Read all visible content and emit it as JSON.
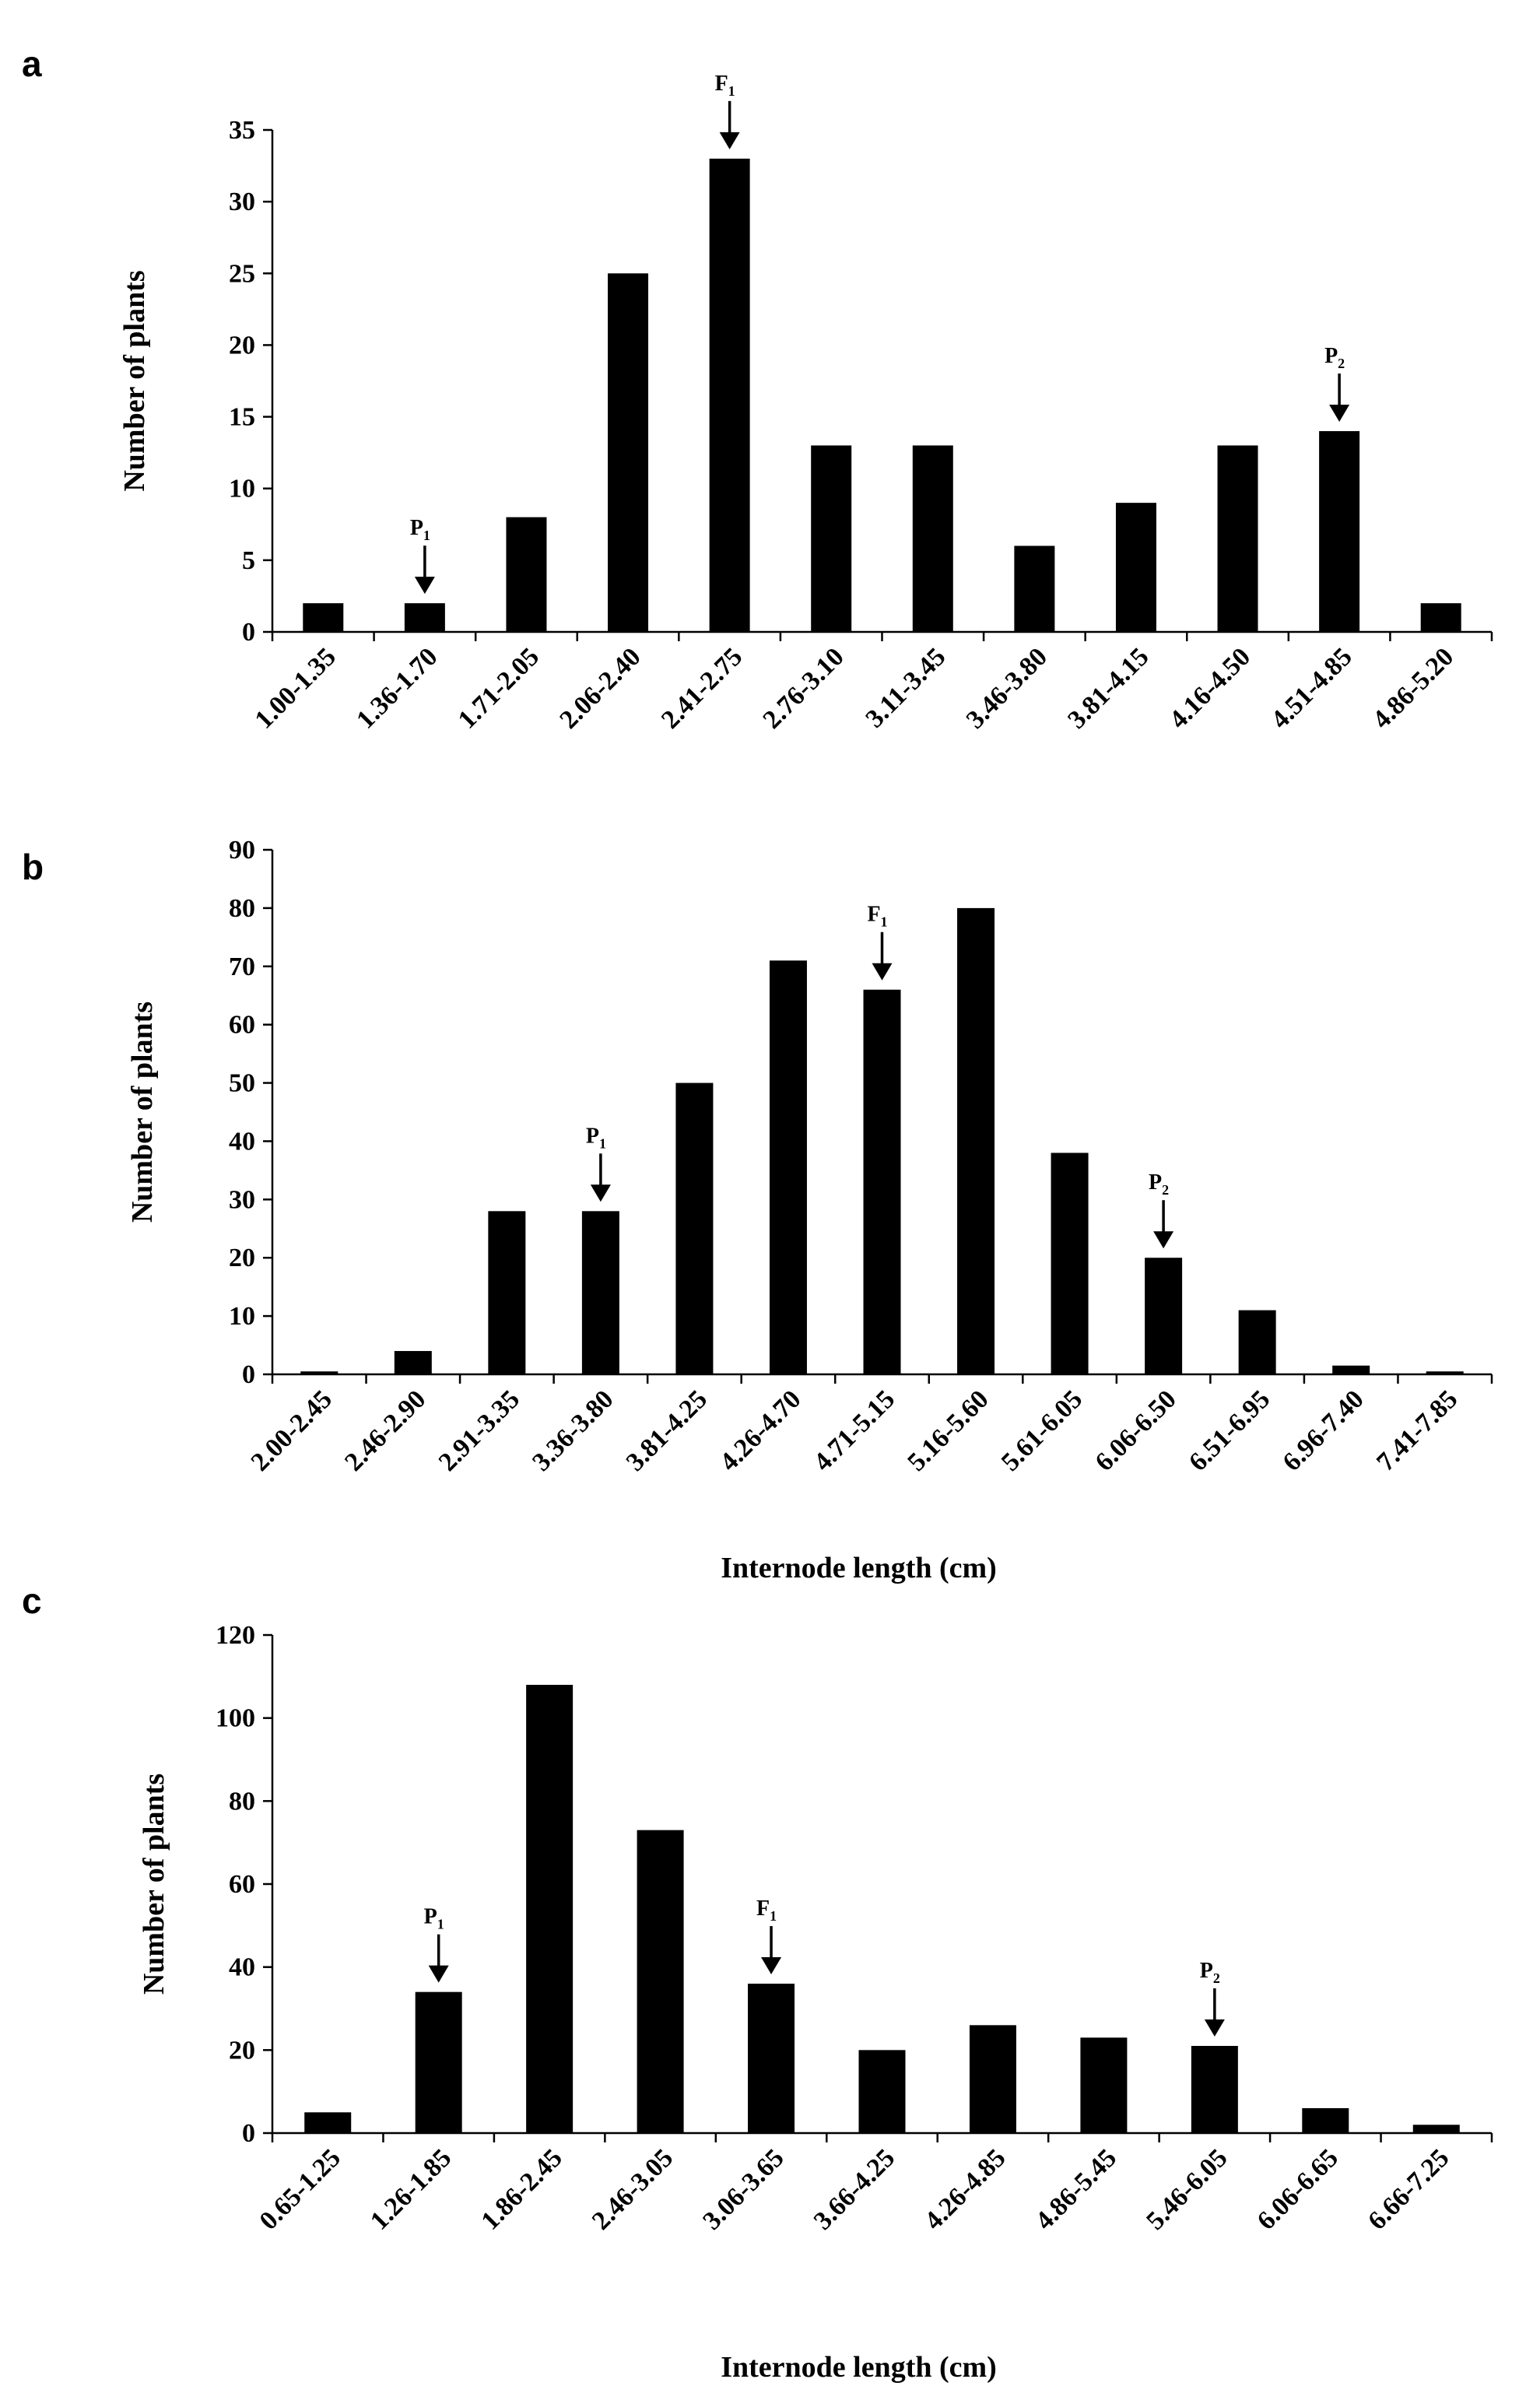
{
  "figure": {
    "annotations_note": "arrow labels",
    "chart_data": [
      {
        "panel": "a",
        "type": "bar",
        "title": "",
        "xlabel": "",
        "ylabel": "Number  of plants",
        "ylim": [
          0,
          35
        ],
        "yticks": [
          0,
          5,
          10,
          15,
          20,
          25,
          30,
          35
        ],
        "categories": [
          "1.00-1.35",
          "1.36-1.70",
          "1.71-2.05",
          "2.06-2.40",
          "2.41-2.75",
          "2.76-3.10",
          "3.11-3.45",
          "3.46-3.80",
          "3.81-4.15",
          "4.16-4.50",
          "4.51-4.85",
          "4.86-5.20"
        ],
        "values": [
          2,
          2,
          8,
          25,
          33,
          13,
          13,
          6,
          9,
          13,
          14,
          2
        ],
        "annotations": [
          {
            "label": "P",
            "sub": "1",
            "category_index": 1
          },
          {
            "label": "F",
            "sub": "1",
            "category_index": 4
          },
          {
            "label": "P",
            "sub": "2",
            "category_index": 10
          }
        ]
      },
      {
        "panel": "b",
        "type": "bar",
        "title": "",
        "xlabel": "Internode   length (cm)",
        "ylabel": "Number  of plants",
        "ylim": [
          0,
          90
        ],
        "yticks": [
          0,
          10,
          20,
          30,
          40,
          50,
          60,
          70,
          80,
          90
        ],
        "categories": [
          "2.00-2.45",
          "2.46-2.90",
          "2.91-3.35",
          "3.36-3.80",
          "3.81-4.25",
          "4.26-4.70",
          "4.71-5.15",
          "5.16-5.60",
          "5.61-6.05",
          "6.06-6.50",
          "6.51-6.95",
          "6.96-7.40",
          "7.41-7.85"
        ],
        "values": [
          0.5,
          4,
          28,
          28,
          50,
          71,
          66,
          80,
          38,
          20,
          11,
          1.5,
          0.5
        ],
        "annotations": [
          {
            "label": "P",
            "sub": "1",
            "category_index": 3
          },
          {
            "label": "F",
            "sub": "1",
            "category_index": 6
          },
          {
            "label": "P",
            "sub": "2",
            "category_index": 9
          }
        ]
      },
      {
        "panel": "c",
        "type": "bar",
        "title": "",
        "xlabel": "Internode   length (cm)",
        "ylabel": "Number  of plants",
        "ylim": [
          0,
          120
        ],
        "yticks": [
          0,
          20,
          40,
          60,
          80,
          100,
          120
        ],
        "categories": [
          "0.65-1.25",
          "1.26-1.85",
          "1.86-2.45",
          "2.46-3.05",
          "3.06-3.65",
          "3.66-4.25",
          "4.26-4.85",
          "4.86-5.45",
          "5.46-6.05",
          "6.06-6.65",
          "6.66-7.25"
        ],
        "values": [
          5,
          34,
          108,
          73,
          36,
          20,
          26,
          23,
          21,
          6,
          2
        ],
        "annotations": [
          {
            "label": "P",
            "sub": "1",
            "category_index": 1
          },
          {
            "label": "F",
            "sub": "1",
            "category_index": 4
          },
          {
            "label": "P",
            "sub": "2",
            "category_index": 8
          }
        ]
      }
    ]
  }
}
